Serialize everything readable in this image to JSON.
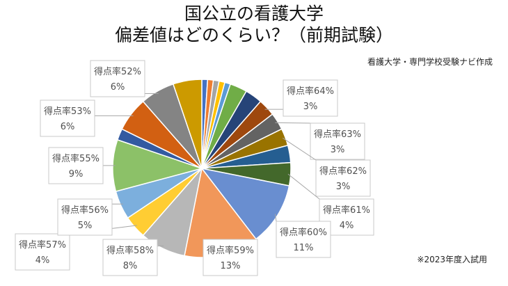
{
  "header": {
    "title_line1": "国公立の看護大学",
    "title_line2": "偏差値はどのくらい？（前期試験）",
    "credit": "看護大学・専門学校受験ナビ作成",
    "footnote": "※2023年度入試用"
  },
  "chart_data": {
    "type": "pie",
    "title": "国公立の看護大学 偏差値はどのくらい？（前期試験）",
    "slices": [
      {
        "label": "",
        "value": 1,
        "color": "#4472c4"
      },
      {
        "label": "",
        "value": 1,
        "color": "#ed7d31"
      },
      {
        "label": "",
        "value": 1,
        "color": "#a5a5a5"
      },
      {
        "label": "",
        "value": 1,
        "color": "#ffc000"
      },
      {
        "label": "",
        "value": 1,
        "color": "#5b9bd5"
      },
      {
        "label": "",
        "value": 3,
        "color": "#70ad47"
      },
      {
        "label": "",
        "value": 3,
        "color": "#264478"
      },
      {
        "label": "得点率64%",
        "value": 3,
        "display": "3%",
        "color": "#9e480e"
      },
      {
        "label": "得点率63%",
        "value": 3,
        "display": "3%",
        "color": "#636363"
      },
      {
        "label": "得点率62%",
        "value": 3,
        "display": "3%",
        "color": "#997300"
      },
      {
        "label": "",
        "value": 3,
        "color": "#255e91"
      },
      {
        "label": "得点率61%",
        "value": 4,
        "display": "4%",
        "color": "#43682b"
      },
      {
        "label": "得点率60%",
        "value": 11,
        "display": "11%",
        "color": "#698ed0"
      },
      {
        "label": "得点率59%",
        "value": 13,
        "display": "13%",
        "color": "#f1975a"
      },
      {
        "label": "得点率58%",
        "value": 8,
        "display": "8%",
        "color": "#b7b7b7"
      },
      {
        "label": "得点率57%",
        "value": 4,
        "display": "4%",
        "color": "#ffcd33"
      },
      {
        "label": "得点率56%",
        "value": 5,
        "display": "5%",
        "color": "#7cafdd"
      },
      {
        "label": "得点率55%",
        "value": 9,
        "display": "9%",
        "color": "#8cc168"
      },
      {
        "label": "",
        "value": 2,
        "color": "#335aa1"
      },
      {
        "label": "得点率53%",
        "value": 6,
        "display": "6%",
        "color": "#d26012"
      },
      {
        "label": "得点率52%",
        "value": 6,
        "display": "6%",
        "color": "#848484"
      },
      {
        "label": "",
        "value": 5,
        "color": "#cc9a00"
      }
    ],
    "legend": "none"
  }
}
